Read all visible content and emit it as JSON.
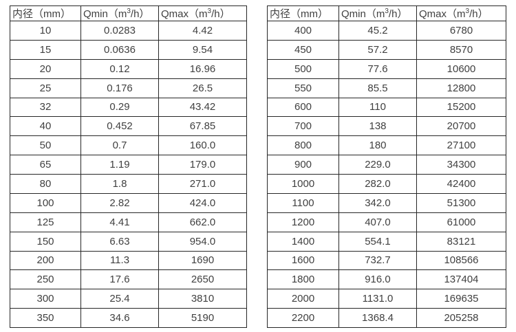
{
  "headers": {
    "diameter": "内径（mm）",
    "qmin": {
      "pre": "Qmin（m",
      "sup": "3",
      "post": "/h）"
    },
    "qmax": {
      "pre": "Qmax（m",
      "sup": "3",
      "post": "/h）"
    }
  },
  "colors": {
    "border": "#262626",
    "text": "#404040",
    "background": "#ffffff"
  },
  "tables": [
    {
      "name": "flow-rate-table-small-diameters",
      "rows": [
        [
          "10",
          "0.0283",
          "4.42"
        ],
        [
          "15",
          "0.0636",
          "9.54"
        ],
        [
          "20",
          "0.12",
          "16.96"
        ],
        [
          "25",
          "0.176",
          "26.5"
        ],
        [
          "32",
          "0.29",
          "43.42"
        ],
        [
          "40",
          "0.452",
          "67.85"
        ],
        [
          "50",
          "0.7",
          "160.0"
        ],
        [
          "65",
          "1.19",
          "179.0"
        ],
        [
          "80",
          "1.8",
          "271.0"
        ],
        [
          "100",
          "2.82",
          "424.0"
        ],
        [
          "125",
          "4.41",
          "662.0"
        ],
        [
          "150",
          "6.63",
          "954.0"
        ],
        [
          "200",
          "11.3",
          "1690"
        ],
        [
          "250",
          "17.6",
          "2650"
        ],
        [
          "300",
          "25.4",
          "3810"
        ],
        [
          "350",
          "34.6",
          "5190"
        ]
      ]
    },
    {
      "name": "flow-rate-table-large-diameters",
      "rows": [
        [
          "400",
          "45.2",
          "6780"
        ],
        [
          "450",
          "57.2",
          "8570"
        ],
        [
          "500",
          "77.6",
          "10600"
        ],
        [
          "550",
          "85.5",
          "12800"
        ],
        [
          "600",
          "110",
          "15200"
        ],
        [
          "700",
          "138",
          "20700"
        ],
        [
          "800",
          "180",
          "27100"
        ],
        [
          "900",
          "229.0",
          "34300"
        ],
        [
          "1000",
          "282.0",
          "42400"
        ],
        [
          "1100",
          "342.0",
          "51300"
        ],
        [
          "1200",
          "407.0",
          "61000"
        ],
        [
          "1400",
          "554.1",
          "83121"
        ],
        [
          "1600",
          "732.7",
          "108566"
        ],
        [
          "1800",
          "916.0",
          "137404"
        ],
        [
          "2000",
          "1131.0",
          "169635"
        ],
        [
          "2200",
          "1368.4",
          "205258"
        ]
      ]
    }
  ]
}
